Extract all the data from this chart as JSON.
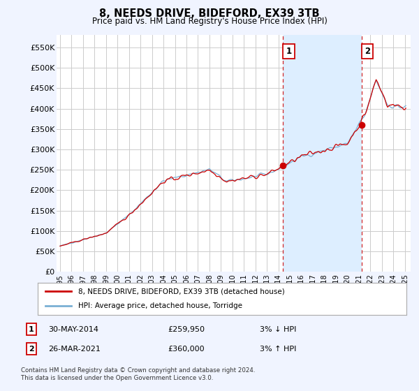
{
  "title": "8, NEEDS DRIVE, BIDEFORD, EX39 3TB",
  "subtitle": "Price paid vs. HM Land Registry's House Price Index (HPI)",
  "ylabel_ticks": [
    "£0",
    "£50K",
    "£100K",
    "£150K",
    "£200K",
    "£250K",
    "£300K",
    "£350K",
    "£400K",
    "£450K",
    "£500K",
    "£550K"
  ],
  "ytick_values": [
    0,
    50000,
    100000,
    150000,
    200000,
    250000,
    300000,
    350000,
    400000,
    450000,
    500000,
    550000
  ],
  "ylim": [
    0,
    580000
  ],
  "xlim_start": 1994.7,
  "xlim_end": 2025.5,
  "marker1_x": 2014.41,
  "marker1_y": 259950,
  "marker2_x": 2021.23,
  "marker2_y": 360000,
  "vline1_x": 2014.41,
  "vline2_x": 2021.23,
  "red_line_color": "#cc0000",
  "blue_line_color": "#7ab0d4",
  "shade_color": "#ddeeff",
  "legend_red_label": "8, NEEDS DRIVE, BIDEFORD, EX39 3TB (detached house)",
  "legend_blue_label": "HPI: Average price, detached house, Torridge",
  "table_row1": [
    "1",
    "30-MAY-2014",
    "£259,950",
    "3% ↓ HPI"
  ],
  "table_row2": [
    "2",
    "26-MAR-2021",
    "£360,000",
    "3% ↑ HPI"
  ],
  "footer": "Contains HM Land Registry data © Crown copyright and database right 2024.\nThis data is licensed under the Open Government Licence v3.0.",
  "bg_color": "#f0f4ff",
  "plot_bg_color": "#ffffff",
  "grid_color": "#cccccc",
  "xtick_years": [
    1995,
    1996,
    1997,
    1998,
    1999,
    2000,
    2001,
    2002,
    2003,
    2004,
    2005,
    2006,
    2007,
    2008,
    2009,
    2010,
    2011,
    2012,
    2013,
    2014,
    2015,
    2016,
    2017,
    2018,
    2019,
    2020,
    2021,
    2022,
    2023,
    2024,
    2025
  ]
}
